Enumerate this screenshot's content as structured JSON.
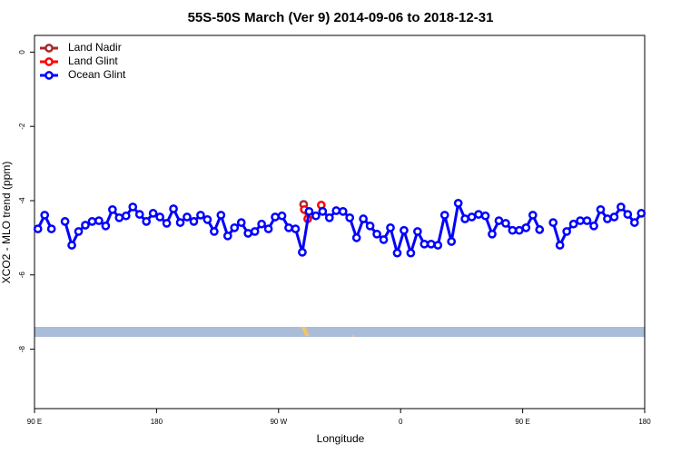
{
  "chart_data": {
    "type": "line",
    "title": "55S-50S March (Ver 9)   2014-09-06 to 2018-12-31",
    "x_label": "Longitude",
    "y_label": "XCO2 - MLO trend (ppm)",
    "xlim": [
      90,
      540
    ],
    "xticks": [
      {
        "value": 90,
        "label": "90 E"
      },
      {
        "value": 180,
        "label": "180"
      },
      {
        "value": 270,
        "label": "90 W"
      },
      {
        "value": 360,
        "label": "0"
      },
      {
        "value": 450,
        "label": "90 E"
      },
      {
        "value": 540,
        "label": "180"
      }
    ],
    "ylim": [
      -9.6,
      0.45
    ],
    "yticks": [
      0,
      -2,
      -4,
      -6,
      -8
    ],
    "legend": "top-left",
    "series": [
      {
        "name": "Land Nadir",
        "color": "#a52a2a",
        "x": [
          288.5
        ],
        "values": [
          -4.1
        ]
      },
      {
        "name": "Land Glint",
        "color": "#ff0000",
        "x": [
          289,
          291.5,
          296.5,
          301.5
        ],
        "values": [
          -4.24,
          -4.49,
          null,
          -4.12
        ]
      },
      {
        "name": "Ocean Glint",
        "color": "#0000ff",
        "x": [
          92.5,
          97.5,
          102.5,
          107.5,
          112.5,
          117.5,
          122.5,
          127.5,
          132.5,
          137.5,
          142.5,
          147.5,
          152.5,
          157.5,
          162.5,
          167.5,
          172.5,
          177.5,
          182.5,
          187.5,
          192.5,
          197.5,
          202.5,
          207.5,
          212.5,
          217.5,
          222.5,
          227.5,
          232.5,
          237.5,
          242.5,
          247.5,
          252.5,
          257.5,
          262.5,
          267.5,
          272.5,
          277.5,
          282.5,
          287.5,
          292.5,
          297.5,
          302.5,
          307.5,
          312.5,
          317.5,
          322.5,
          327.5,
          332.5,
          337.5,
          342.5,
          347.5,
          352.5,
          357.5,
          362.5,
          367.5,
          372.5,
          377.5,
          382.5,
          387.5,
          392.5,
          397.5,
          402.5,
          407.5,
          412.5,
          417.5,
          422.5,
          427.5,
          432.5,
          437.5,
          442.5,
          447.5,
          452.5,
          457.5,
          462.5,
          467.5,
          472.5,
          477.5,
          482.5,
          487.5,
          492.5,
          497.5,
          502.5,
          507.5,
          512.5,
          517.5,
          522.5,
          527.5,
          532.5,
          537.5
        ],
        "values": [
          -4.76,
          -4.39,
          -4.76,
          null,
          -4.56,
          -5.2,
          -4.83,
          -4.66,
          -4.56,
          -4.54,
          -4.68,
          -4.24,
          -4.46,
          -4.41,
          -4.17,
          -4.37,
          -4.56,
          -4.34,
          -4.44,
          -4.61,
          -4.22,
          -4.59,
          -4.44,
          -4.56,
          -4.39,
          -4.51,
          -4.83,
          -4.39,
          -4.95,
          -4.73,
          -4.59,
          -4.88,
          -4.83,
          -4.63,
          -4.76,
          -4.44,
          -4.41,
          -4.73,
          -4.76,
          -5.39,
          -4.29,
          -4.41,
          -4.29,
          -4.46,
          -4.27,
          -4.29,
          -4.46,
          -5.0,
          -4.49,
          -4.68,
          -4.9,
          -5.05,
          -4.73,
          -5.41,
          -4.8,
          -5.41,
          -4.83,
          -5.17,
          -5.17,
          -5.2,
          -4.39,
          -5.1,
          -4.07,
          -4.49,
          -4.44,
          -4.37,
          -4.41,
          -4.9,
          -4.54,
          -4.61,
          -4.8,
          -4.8,
          -4.73,
          -4.39,
          -4.78,
          null,
          -4.59,
          -5.2,
          -4.83,
          -4.63,
          -4.54,
          -4.54,
          -4.68,
          -4.24,
          -4.49,
          -4.44,
          -4.17,
          -4.37,
          -4.59,
          -4.34
        ]
      }
    ]
  }
}
